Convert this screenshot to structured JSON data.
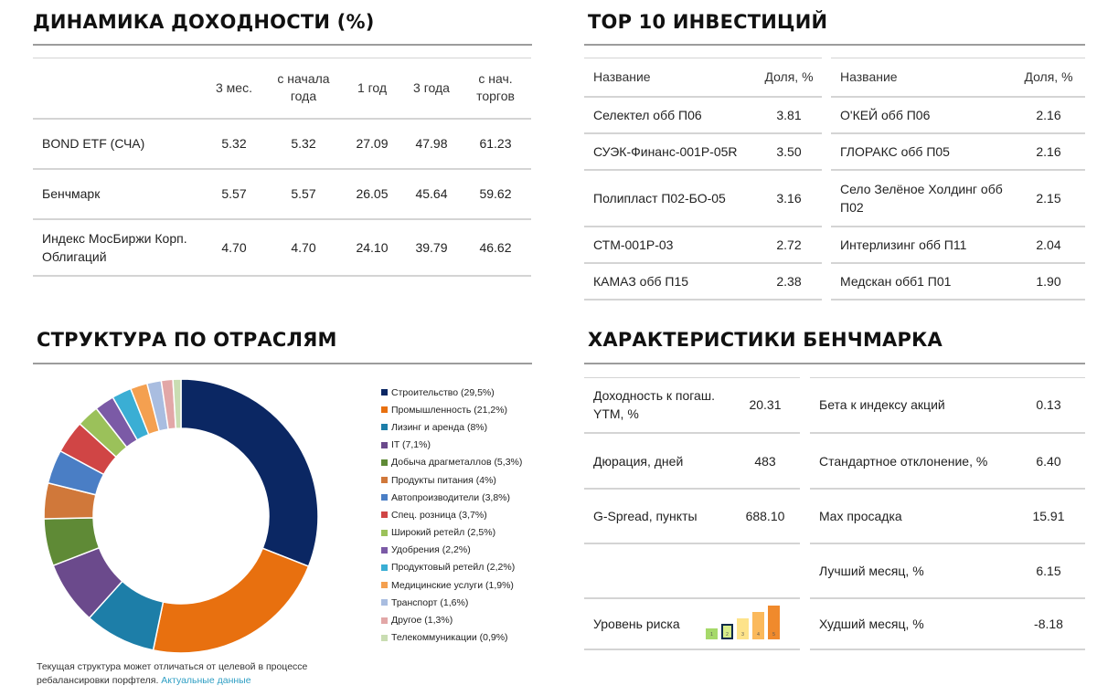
{
  "returns": {
    "title": "ДИНАМИКА ДОХОДНОСТИ (%)",
    "columns": [
      "3 мес.",
      "с начала года",
      "1 год",
      "3 года",
      "с нач. торгов"
    ],
    "rows": [
      {
        "name": "BOND ETF (СЧА)",
        "values": [
          "5.32",
          "5.32",
          "27.09",
          "47.98",
          "61.23"
        ]
      },
      {
        "name": "Бенчмарк",
        "values": [
          "5.57",
          "5.57",
          "26.05",
          "45.64",
          "59.62"
        ]
      },
      {
        "name": "Индекс МосБиржи Корп. Облигаций",
        "values": [
          "4.70",
          "4.70",
          "24.10",
          "39.79",
          "46.62"
        ]
      }
    ]
  },
  "top10": {
    "title": "TOP 10 ИНВЕСТИЦИЙ",
    "name_header": "Название",
    "share_header": "Доля, %",
    "left": [
      {
        "name": "Селектел обб П06",
        "share": "3.81"
      },
      {
        "name": "СУЭК-Финанс-001Р-05R",
        "share": "3.50"
      },
      {
        "name": "Полипласт П02-БО-05",
        "share": "3.16"
      },
      {
        "name": "СТМ-001Р-03",
        "share": "2.72"
      },
      {
        "name": "КАМАЗ обб П15",
        "share": "2.38"
      }
    ],
    "right": [
      {
        "name": "О'КЕЙ обб П06",
        "share": "2.16"
      },
      {
        "name": "ГЛОРАКС обб П05",
        "share": "2.16"
      },
      {
        "name": "Село Зелёное Холдинг обб П02",
        "share": "2.15"
      },
      {
        "name": "Интерлизинг обб П11",
        "share": "2.04"
      },
      {
        "name": "Медскан обб1 П01",
        "share": "1.90"
      }
    ]
  },
  "sectors": {
    "title": "СТРУКТУРА ПО ОТРАСЛЯМ",
    "note": "Текущая структура может отличаться от целевой в процессе ребалансировки порфтеля.",
    "note_link": "Актуальные данные"
  },
  "chart_data": {
    "type": "pie",
    "donut": true,
    "legend_position": "right",
    "labels": [
      "Строительство (29,5%)",
      "Промышленность (21,2%)",
      "Лизинг и аренда (8%)",
      "IT (7,1%)",
      "Добыча драгметаллов (5,3%)",
      "Продукты питания (4%)",
      "Автопроизводители (3,8%)",
      "Спец. розница (3,7%)",
      "Широкий ретейл (2,5%)",
      "Удобрения (2,2%)",
      "Продуктовый ретейл (2,2%)",
      "Медицинские услуги (1,9%)",
      "Транспорт (1,6%)",
      "Другое (1,3%)",
      "Телекоммуникации (0,9%)"
    ],
    "values": [
      29.5,
      21.2,
      8,
      7.1,
      5.3,
      4,
      3.8,
      3.7,
      2.5,
      2.2,
      2.2,
      1.9,
      1.6,
      1.3,
      0.9
    ],
    "colors": [
      "#0b2763",
      "#e8700f",
      "#1d7ea8",
      "#6b4a8c",
      "#5f8a36",
      "#d0783a",
      "#4a7ec5",
      "#d04545",
      "#9bc15a",
      "#7b5aa6",
      "#3aaed4",
      "#f4a050",
      "#a9bde0",
      "#e2a7a7",
      "#c9ddb2"
    ]
  },
  "benchmark": {
    "title": "ХАРАКТЕРИСТИКИ БЕНЧМАРКА",
    "left": [
      {
        "label": "Доходность к погаш. YTM, %",
        "value": "20.31"
      },
      {
        "label": "Дюрация, дней",
        "value": "483"
      },
      {
        "label": "G-Spread, пункты",
        "value": "688.10"
      },
      {
        "label": "",
        "value": ""
      },
      {
        "label": "Уровень риска",
        "value": ""
      }
    ],
    "right": [
      {
        "label": "Бета к индексу акций",
        "value": "0.13"
      },
      {
        "label": "Стандартное отклонение, %",
        "value": "6.40"
      },
      {
        "label": "Max просадка",
        "value": "15.91"
      },
      {
        "label": "Лучший месяц, %",
        "value": "6.15"
      },
      {
        "label": "Худший месяц, %",
        "value": "-8.18"
      }
    ],
    "risk": {
      "levels": [
        "1",
        "2",
        "3",
        "4",
        "5"
      ],
      "selected": 2,
      "colors": [
        "#a6d96a",
        "#d7ec8a",
        "#fde38a",
        "#fbb95c",
        "#f08a2c"
      ]
    }
  }
}
